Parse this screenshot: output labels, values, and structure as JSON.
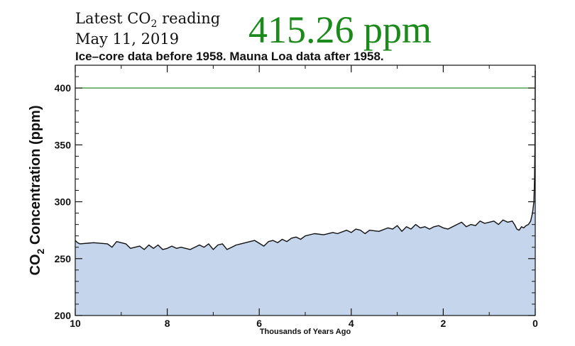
{
  "header": {
    "label_prefix": "Latest CO",
    "label_sub": "2",
    "label_suffix": " reading",
    "date": "May 11, 2019",
    "value_text": "415.26 ppm",
    "subtitle": "Ice–core data before 1958. Mauna Loa data after 1958."
  },
  "colors": {
    "value_text": "#1a8a1a",
    "reference_line": "#2e8b2e",
    "area_fill": "#c5d5eb",
    "line": "#111111"
  },
  "chart_data": {
    "type": "area",
    "xlabel": "Thousands of Years Ago",
    "ylabel_prefix": "CO",
    "ylabel_sub": "2",
    "ylabel_suffix": " Concentration (ppm)",
    "xlim": [
      10,
      0
    ],
    "ylim": [
      200,
      420
    ],
    "x_ticks": [
      "10",
      "8",
      "6",
      "4",
      "2",
      "0"
    ],
    "y_ticks": [
      "200",
      "250",
      "300",
      "350",
      "400"
    ],
    "reference_line": 400,
    "series": [
      {
        "x": [
          10,
          9.95,
          9.9,
          9.6,
          9.3,
          9.2,
          9.1,
          9.0,
          8.9,
          8.8,
          8.6,
          8.5,
          8.4,
          8.3,
          8.2,
          8.1,
          8.0,
          7.9,
          7.8,
          7.7,
          7.5,
          7.3,
          7.2,
          7.1,
          7.0,
          6.9,
          6.8,
          6.7,
          6.6,
          6.5,
          6.4,
          6.3,
          6.2,
          6.1,
          5.9,
          5.8,
          5.7,
          5.6,
          5.5,
          5.4,
          5.3,
          5.2,
          5.1,
          5.0,
          4.8,
          4.6,
          4.4,
          4.3,
          4.1,
          4.0,
          3.9,
          3.8,
          3.7,
          3.6,
          3.4,
          3.2,
          3.1,
          3.0,
          2.9,
          2.8,
          2.7,
          2.6,
          2.5,
          2.4,
          2.3,
          2.2,
          2.1,
          2.0,
          1.9,
          1.7,
          1.6,
          1.5,
          1.4,
          1.3,
          1.2,
          1.1,
          1.0,
          0.9,
          0.8,
          0.7,
          0.6,
          0.5,
          0.45,
          0.4,
          0.35,
          0.3,
          0.25,
          0.2,
          0.15,
          0.1,
          0.06,
          0.03,
          0.015,
          0.006,
          0
        ],
        "values": [
          266,
          264,
          263,
          264,
          263,
          260,
          265,
          264,
          263,
          259,
          261,
          258,
          262,
          259,
          262,
          258,
          259,
          261,
          259,
          260,
          258,
          262,
          260,
          263,
          258,
          262,
          263,
          258,
          260,
          262,
          263,
          264,
          265,
          266,
          261,
          265,
          266,
          264,
          267,
          265,
          268,
          269,
          267,
          270,
          272,
          271,
          273,
          272,
          275,
          273,
          276,
          275,
          272,
          275,
          274,
          277,
          276,
          279,
          274,
          278,
          276,
          280,
          277,
          278,
          276,
          278,
          279,
          277,
          276,
          280,
          282,
          278,
          280,
          279,
          283,
          281,
          282,
          283,
          280,
          284,
          282,
          283,
          280,
          276,
          275,
          278,
          277,
          279,
          280,
          283,
          290,
          300,
          320,
          350,
          415
        ]
      }
    ]
  }
}
